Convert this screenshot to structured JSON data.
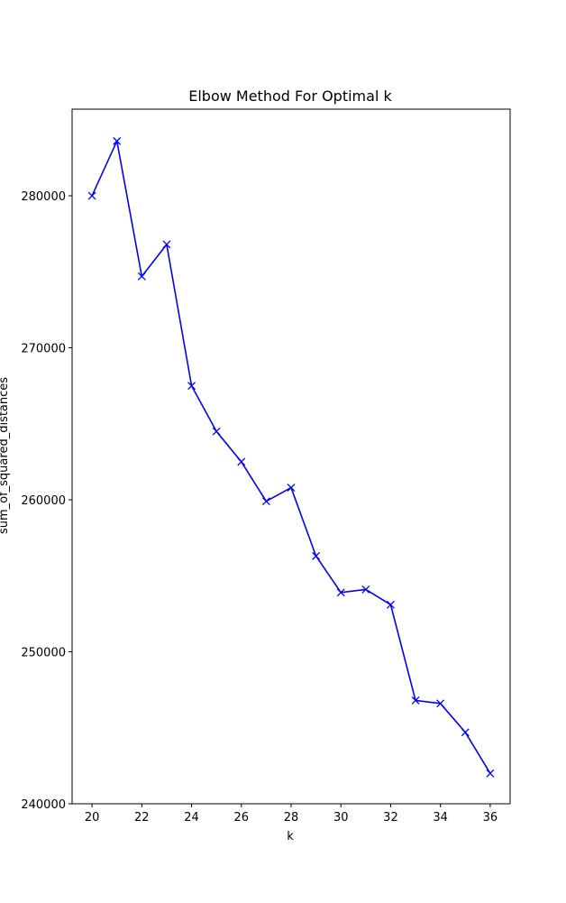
{
  "chart_data": {
    "type": "line",
    "title": "Elbow Method For Optimal k",
    "xlabel": "k",
    "ylabel": "sum_of_squared_distances",
    "xlim": [
      19.2,
      36.8
    ],
    "ylim": [
      240000,
      285700
    ],
    "grid": false,
    "legend": "none",
    "xticks": [
      20,
      22,
      24,
      26,
      28,
      30,
      32,
      34,
      36
    ],
    "xtick_labels": [
      "20",
      "22",
      "24",
      "26",
      "28",
      "30",
      "32",
      "34",
      "36"
    ],
    "yticks": [
      240000,
      250000,
      260000,
      270000,
      280000
    ],
    "ytick_labels": [
      "240000",
      "250000",
      "260000",
      "270000",
      "280000"
    ],
    "series": [
      {
        "color": "#0000ff",
        "marker": "x",
        "x": [
          20,
          21,
          22,
          23,
          24,
          25,
          26,
          27,
          28,
          29,
          30,
          31,
          32,
          33,
          34,
          35,
          36
        ],
        "y": [
          280000,
          283600,
          274700,
          276800,
          267500,
          264500,
          262500,
          259900,
          260800,
          256300,
          253900,
          254100,
          253100,
          246800,
          246600,
          244700,
          242000
        ]
      }
    ]
  }
}
